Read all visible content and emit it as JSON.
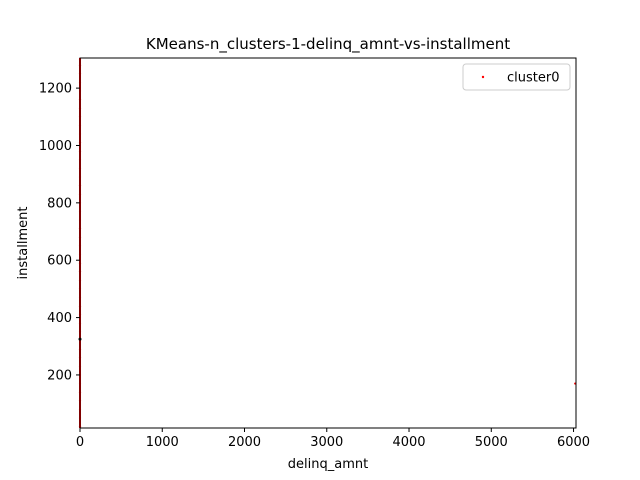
{
  "chart_data": {
    "type": "scatter",
    "title": "KMeans-n_clusters-1-delinq_amnt-vs-installment",
    "xlabel": "delinq_amnt",
    "ylabel": "installment",
    "xlim": [
      0,
      6030
    ],
    "ylim": [
      15,
      1305
    ],
    "xticks": [
      0,
      1000,
      2000,
      3000,
      4000,
      5000,
      6000
    ],
    "yticks": [
      200,
      400,
      600,
      800,
      1000,
      1200
    ],
    "grid": false,
    "legend_position": "top-right",
    "series": [
      {
        "name": "cluster0",
        "color": "#ff0000",
        "points": [
          [
            0,
            20
          ],
          [
            0,
            50
          ],
          [
            0,
            80
          ],
          [
            0,
            110
          ],
          [
            0,
            140
          ],
          [
            0,
            170
          ],
          [
            0,
            200
          ],
          [
            0,
            230
          ],
          [
            0,
            260
          ],
          [
            0,
            290
          ],
          [
            0,
            320
          ],
          [
            0,
            350
          ],
          [
            0,
            380
          ],
          [
            0,
            410
          ],
          [
            0,
            440
          ],
          [
            0,
            470
          ],
          [
            0,
            500
          ],
          [
            0,
            530
          ],
          [
            0,
            560
          ],
          [
            0,
            590
          ],
          [
            0,
            620
          ],
          [
            0,
            650
          ],
          [
            0,
            680
          ],
          [
            0,
            710
          ],
          [
            0,
            740
          ],
          [
            0,
            770
          ],
          [
            0,
            800
          ],
          [
            0,
            830
          ],
          [
            0,
            860
          ],
          [
            0,
            890
          ],
          [
            0,
            920
          ],
          [
            0,
            950
          ],
          [
            0,
            980
          ],
          [
            0,
            1010
          ],
          [
            0,
            1040
          ],
          [
            0,
            1070
          ],
          [
            0,
            1100
          ],
          [
            0,
            1130
          ],
          [
            0,
            1160
          ],
          [
            0,
            1190
          ],
          [
            0,
            1220
          ],
          [
            0,
            1250
          ],
          [
            0,
            1280
          ],
          [
            0,
            1300
          ],
          [
            6020,
            170
          ]
        ]
      }
    ],
    "centroid": {
      "x": 0,
      "y": 325,
      "color": "#000000"
    }
  }
}
